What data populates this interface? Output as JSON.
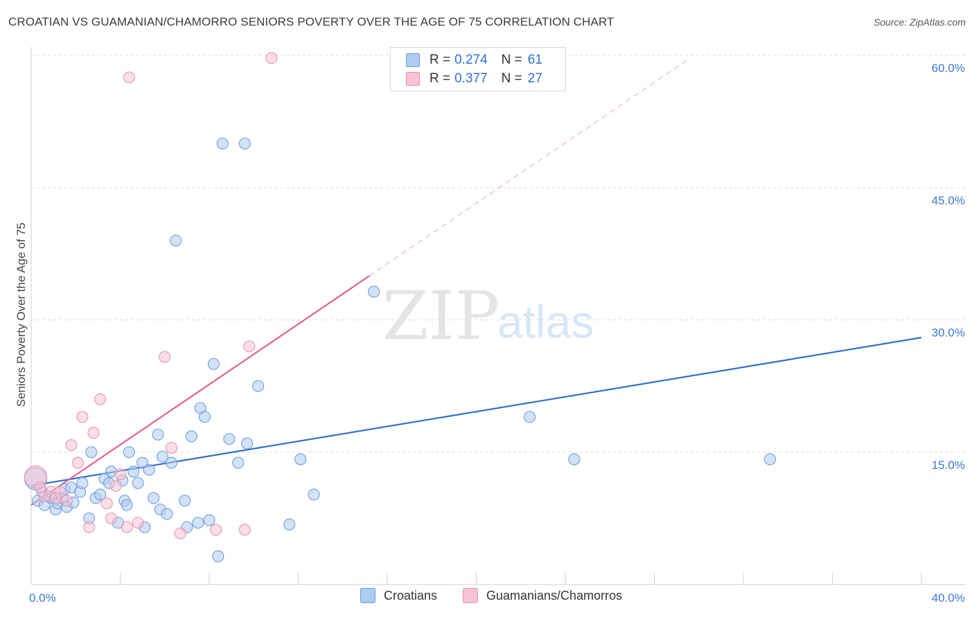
{
  "header": {
    "title": "CROATIAN VS GUAMANIAN/CHAMORRO SENIORS POVERTY OVER THE AGE OF 75 CORRELATION CHART",
    "source": "Source: ZipAtlas.com"
  },
  "watermark": {
    "zip": "ZIP",
    "atlas": "atlas"
  },
  "legend": {
    "rows": [
      {
        "r_label": "R = ",
        "r_value": "0.274",
        "n_label": "N = ",
        "n_value": "61",
        "color": "#aecbf0",
        "border": "#6b9be0"
      },
      {
        "r_label": "R = ",
        "r_value": "0.377",
        "n_label": "N = ",
        "n_value": "27",
        "color": "#f7c3d2",
        "border": "#e892ad"
      }
    ]
  },
  "bottom_legend": {
    "croatians": "Croatians",
    "guamanians": "Guamanians/Chamorros"
  },
  "chart_data": {
    "type": "scatter",
    "title": "CROATIAN VS GUAMANIAN/CHAMORRO SENIORS POVERTY OVER THE AGE OF 75 CORRELATION CHART",
    "xlabel": "",
    "ylabel": "Seniors Poverty Over the Age of 75",
    "xlim": [
      0,
      40
    ],
    "ylim": [
      0,
      60
    ],
    "x_tick_labels": [
      "0.0%",
      "40.0%"
    ],
    "y_ticks": [
      15,
      30,
      45,
      60
    ],
    "y_tick_labels": [
      "15.0%",
      "30.0%",
      "45.0%",
      "60.0%"
    ],
    "grid": true,
    "legend_position": "top-center",
    "series": [
      {
        "name": "Croatians",
        "color": "#6b9be0",
        "fill": "#aecbf0",
        "points": [
          [
            0.3,
            9.5
          ],
          [
            0.5,
            10.5
          ],
          [
            0.6,
            9.0
          ],
          [
            0.8,
            10.0
          ],
          [
            0.9,
            9.8
          ],
          [
            1.1,
            8.5
          ],
          [
            1.2,
            9.2
          ],
          [
            1.4,
            9.8
          ],
          [
            1.5,
            10.8
          ],
          [
            1.6,
            8.8
          ],
          [
            1.8,
            11.0
          ],
          [
            1.9,
            9.3
          ],
          [
            2.2,
            10.5
          ],
          [
            2.3,
            11.5
          ],
          [
            2.6,
            7.5
          ],
          [
            2.7,
            15.0
          ],
          [
            2.9,
            9.8
          ],
          [
            3.1,
            10.2
          ],
          [
            3.3,
            12.0
          ],
          [
            3.5,
            11.5
          ],
          [
            3.6,
            12.8
          ],
          [
            3.9,
            7.0
          ],
          [
            4.1,
            11.8
          ],
          [
            4.2,
            9.5
          ],
          [
            4.3,
            9.0
          ],
          [
            4.4,
            15.0
          ],
          [
            4.6,
            12.8
          ],
          [
            4.8,
            11.5
          ],
          [
            5.0,
            13.8
          ],
          [
            5.1,
            6.5
          ],
          [
            5.3,
            13.0
          ],
          [
            5.5,
            9.8
          ],
          [
            5.7,
            17.0
          ],
          [
            5.8,
            8.5
          ],
          [
            5.9,
            14.5
          ],
          [
            6.1,
            8.0
          ],
          [
            6.3,
            13.8
          ],
          [
            6.5,
            39.0
          ],
          [
            6.9,
            9.5
          ],
          [
            7.0,
            6.5
          ],
          [
            7.2,
            16.8
          ],
          [
            7.5,
            7.0
          ],
          [
            7.6,
            20.0
          ],
          [
            7.8,
            19.0
          ],
          [
            8.0,
            7.3
          ],
          [
            8.2,
            25.0
          ],
          [
            8.4,
            3.2
          ],
          [
            8.6,
            50.0
          ],
          [
            8.9,
            16.5
          ],
          [
            9.3,
            13.8
          ],
          [
            9.6,
            50.0
          ],
          [
            9.7,
            16.0
          ],
          [
            10.2,
            22.5
          ],
          [
            11.6,
            6.8
          ],
          [
            12.1,
            14.2
          ],
          [
            12.7,
            10.2
          ],
          [
            15.4,
            33.2
          ],
          [
            22.4,
            19.0
          ],
          [
            24.4,
            14.2
          ],
          [
            33.2,
            14.2
          ],
          [
            0.2,
            12.0
          ]
        ]
      },
      {
        "name": "Guamanians/Chamorros",
        "color": "#e892ad",
        "fill": "#f7c3d2",
        "points": [
          [
            0.2,
            12.2
          ],
          [
            0.6,
            10.0
          ],
          [
            0.9,
            10.5
          ],
          [
            1.3,
            10.5
          ],
          [
            1.6,
            9.5
          ],
          [
            1.8,
            15.8
          ],
          [
            2.1,
            13.8
          ],
          [
            2.3,
            19.0
          ],
          [
            2.6,
            6.5
          ],
          [
            2.8,
            17.2
          ],
          [
            3.1,
            21.0
          ],
          [
            3.4,
            9.2
          ],
          [
            3.6,
            7.5
          ],
          [
            3.8,
            11.2
          ],
          [
            4.0,
            12.5
          ],
          [
            4.3,
            6.5
          ],
          [
            4.4,
            57.5
          ],
          [
            4.8,
            7.0
          ],
          [
            6.0,
            25.8
          ],
          [
            6.3,
            15.5
          ],
          [
            6.7,
            5.8
          ],
          [
            8.3,
            6.2
          ],
          [
            9.6,
            6.2
          ],
          [
            9.8,
            27.0
          ],
          [
            10.8,
            59.7
          ],
          [
            1.1,
            9.8
          ],
          [
            0.4,
            11.0
          ]
        ]
      }
    ],
    "trend_lines": [
      {
        "series": "Croatians",
        "x": [
          0,
          40
        ],
        "y": [
          11.2,
          28.0
        ],
        "style": "solid",
        "color": "#2f6fcb"
      },
      {
        "series": "Guamanians/Chamorros",
        "x": [
          0,
          15.2
        ],
        "y": [
          9.0,
          35.0
        ],
        "style": "solid",
        "color": "#e0628c"
      },
      {
        "series": "Guamanians/Chamorros (extrapolated)",
        "x": [
          15.2,
          29.5
        ],
        "y": [
          35.0,
          59.5
        ],
        "style": "dashed",
        "color": "#efb0c4"
      }
    ]
  }
}
